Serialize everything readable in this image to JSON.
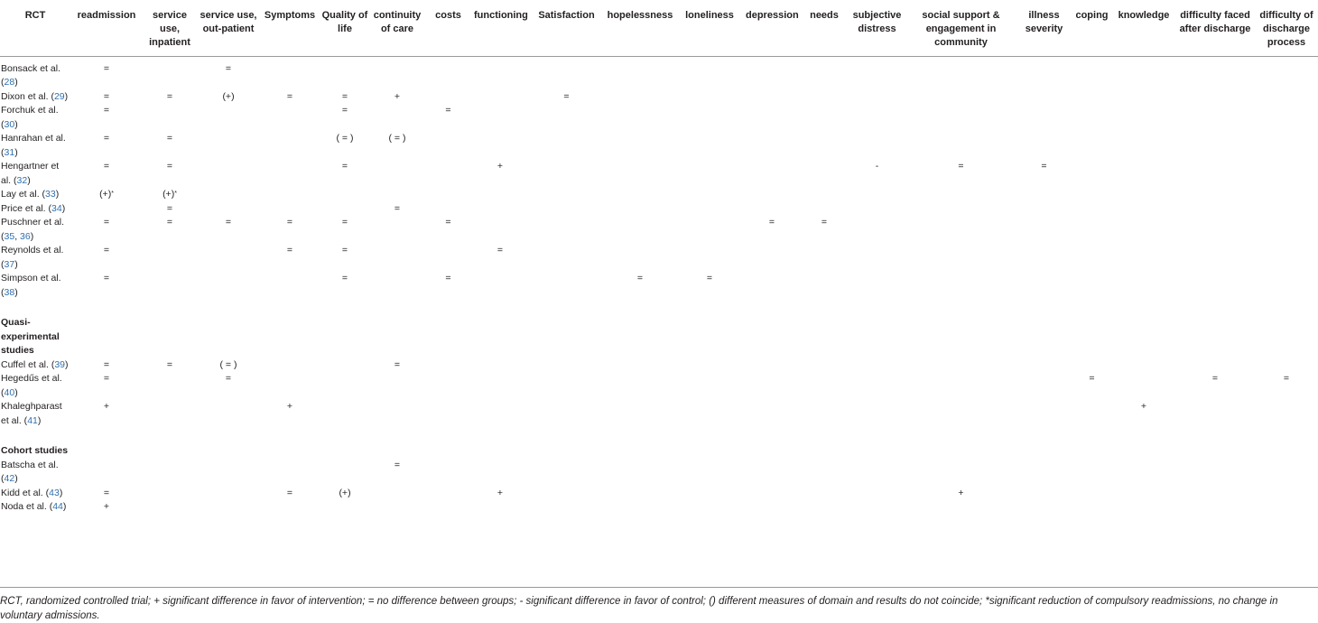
{
  "headers": [
    "RCT",
    "readmission",
    "service use, inpatient",
    "service use, out-patient",
    "Symptoms",
    "Quality of life",
    "continuity of care",
    "costs",
    "functioning",
    "Satisfaction",
    "hopelessness",
    "loneliness",
    "depression",
    "needs",
    "subjective distress",
    "social support & engagement in community",
    "illness severity",
    "coping",
    "knowledge",
    "difficulty faced after discharge",
    "difficulty of discharge process"
  ],
  "sections": {
    "quasi": "Quasi-experimental studies",
    "cohort": "Cohort studies"
  },
  "rows": [
    {
      "name": "Bonsack et al.",
      "ref": "28",
      "cells": [
        "=",
        "",
        "=",
        "",
        "",
        "",
        "",
        "",
        "",
        "",
        "",
        "",
        "",
        "",
        "",
        "",
        "",
        "",
        "",
        ""
      ]
    },
    {
      "name": "Dixon et al.",
      "ref": "29",
      "cells": [
        "=",
        "=",
        "(+)",
        "=",
        "=",
        "+",
        "",
        "",
        "=",
        "",
        "",
        "",
        "",
        "",
        "",
        "",
        "",
        "",
        "",
        ""
      ]
    },
    {
      "name": "Forchuk et al.",
      "ref": "30",
      "cells": [
        "=",
        "",
        "",
        "",
        "=",
        "",
        "=",
        "",
        "",
        "",
        "",
        "",
        "",
        "",
        "",
        "",
        "",
        "",
        "",
        ""
      ]
    },
    {
      "name": "Hanrahan et al.",
      "ref": "31",
      "cells": [
        "=",
        "=",
        "",
        "",
        "( = )",
        "( = )",
        "",
        "",
        "",
        "",
        "",
        "",
        "",
        "",
        "",
        "",
        "",
        "",
        "",
        ""
      ]
    },
    {
      "name": "Hengartner et al.",
      "ref": "32",
      "cells": [
        "=",
        "=",
        "",
        "",
        "=",
        "",
        "",
        "+",
        "",
        "",
        "",
        "",
        "",
        "-",
        "=",
        "=",
        "",
        "",
        "",
        ""
      ]
    },
    {
      "name": "Lay et al.",
      "ref": "33",
      "cells": [
        "(+)",
        "(+)",
        "",
        "",
        "",
        "",
        "",
        "",
        "",
        "",
        "",
        "",
        "",
        "",
        "",
        "",
        "",
        "",
        "",
        ""
      ],
      "star": "*"
    },
    {
      "name": "Price et al.",
      "ref": "34",
      "cells": [
        "",
        "=",
        "",
        "",
        "",
        "=",
        "",
        "",
        "",
        "",
        "",
        "",
        "",
        "",
        "",
        "",
        "",
        "",
        "",
        ""
      ]
    },
    {
      "name": "Puschner et al.",
      "ref": "35",
      "ref2": "36",
      "cells": [
        "=",
        "=",
        "=",
        "=",
        "=",
        "",
        "=",
        "",
        "",
        "",
        "",
        "=",
        "=",
        "",
        "",
        "",
        "",
        "",
        "",
        ""
      ]
    },
    {
      "name": "Reynolds et al.",
      "ref": "37",
      "cells": [
        "=",
        "",
        "",
        "=",
        "=",
        "",
        "",
        "=",
        "",
        "",
        "",
        "",
        "",
        "",
        "",
        "",
        "",
        "",
        "",
        ""
      ]
    },
    {
      "name": "Simpson et al.",
      "ref": "38",
      "cells": [
        "=",
        "",
        "",
        "",
        "=",
        "",
        "=",
        "",
        "",
        "=",
        "=",
        "",
        "",
        "",
        "",
        "",
        "",
        "",
        "",
        ""
      ]
    },
    {
      "name": "Cuffel et al.",
      "ref": "39",
      "cells": [
        "=",
        "=",
        "( = )",
        "",
        "",
        "=",
        "",
        "",
        "",
        "",
        "",
        "",
        "",
        "",
        "",
        "",
        "",
        "",
        "",
        ""
      ]
    },
    {
      "name": "Hegedűs et al.",
      "ref": "40",
      "cells": [
        "=",
        "",
        "=",
        "",
        "",
        "",
        "",
        "",
        "",
        "",
        "",
        "",
        "",
        "",
        "",
        "",
        "=",
        "",
        "=",
        "="
      ]
    },
    {
      "name": "Khaleghparast et al.",
      "ref": "41",
      "cells": [
        "+",
        "",
        "",
        "+",
        "",
        "",
        "",
        "",
        "",
        "",
        "",
        "",
        "",
        "",
        "",
        "",
        "",
        "+",
        "",
        ""
      ]
    },
    {
      "name": "Batscha et al.",
      "ref": "42",
      "cells": [
        "",
        "",
        "",
        "",
        "",
        "=",
        "",
        "",
        "",
        "",
        "",
        "",
        "",
        "",
        "",
        "",
        "",
        "",
        "",
        ""
      ]
    },
    {
      "name": "Kidd et al.",
      "ref": "43",
      "cells": [
        "=",
        "",
        "",
        "=",
        "(+)",
        "",
        "",
        "+",
        "",
        "",
        "",
        "",
        "",
        "",
        "+",
        "",
        "",
        "",
        "",
        ""
      ]
    },
    {
      "name": "Noda et al.",
      "ref": "44",
      "cells": [
        "+",
        "",
        "",
        "",
        "",
        "",
        "",
        "",
        "",
        "",
        "",
        "",
        "",
        "",
        "",
        "",
        "",
        "",
        "",
        ""
      ]
    }
  ],
  "footnote": "RCT, randomized controlled trial; + significant difference in favor of intervention; = no difference between groups; - significant difference in favor of control; () different measures of domain and results do not coincide; *significant reduction of compulsory readmissions, no change in voluntary admissions."
}
